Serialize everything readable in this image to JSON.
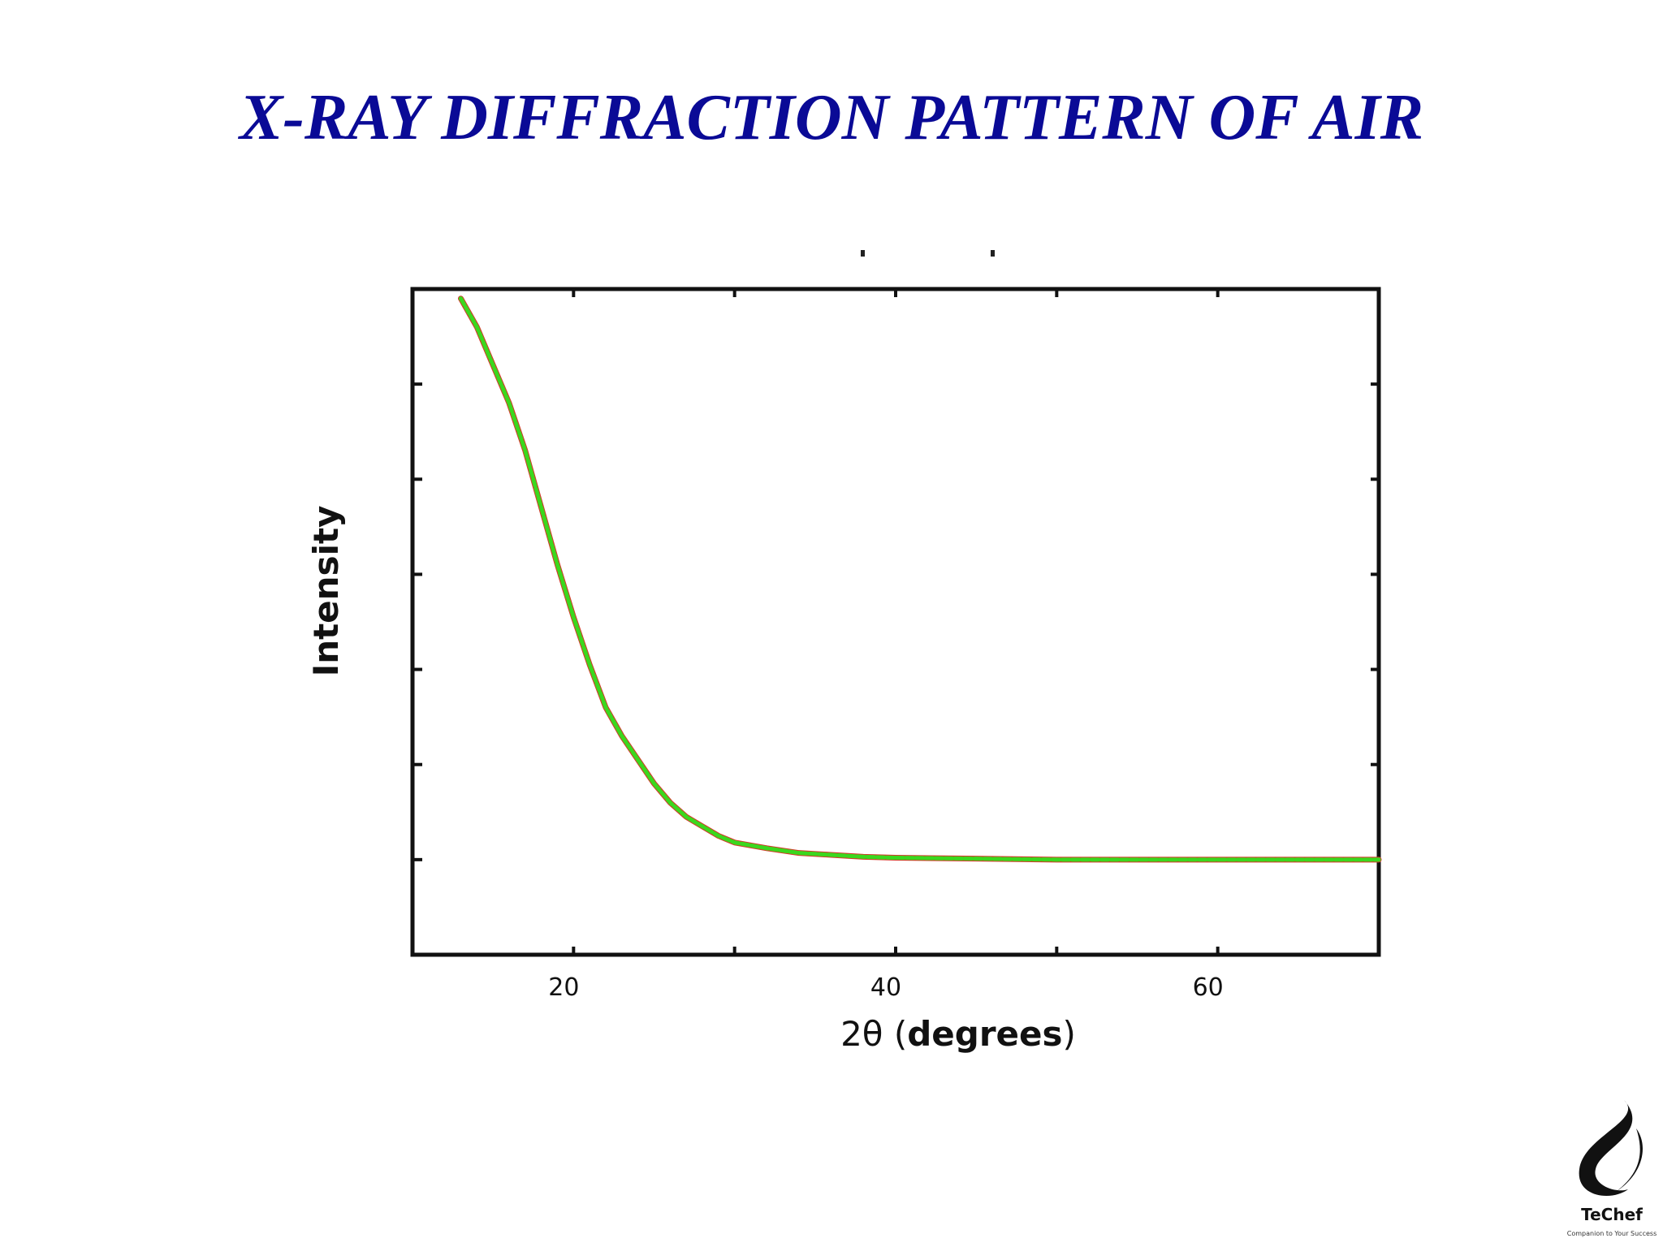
{
  "slide": {
    "title": "X-RAY DIFFRACTION PATTERN OF AIR"
  },
  "logo": {
    "name": "TeChef",
    "tagline": "Companion to Your Success"
  },
  "chart_data": {
    "type": "line",
    "title": "",
    "xlabel_prefix": "2θ (",
    "xlabel_bold": "degrees",
    "xlabel_suffix": ")",
    "ylabel": "Intensity",
    "xlim": [
      10,
      70
    ],
    "ylim": [
      0,
      7
    ],
    "xticks": [
      10,
      20,
      30,
      40,
      50,
      60,
      70
    ],
    "xtick_labels": [
      {
        "x": 20,
        "label": "20"
      },
      {
        "x": 40,
        "label": "40"
      },
      {
        "x": 60,
        "label": "60"
      }
    ],
    "yticks": [
      1,
      2,
      3,
      4,
      5,
      6
    ],
    "grid": false,
    "legend": "none",
    "series_colors": [
      "#3ad81e",
      "#d23a2a"
    ],
    "series": [
      {
        "x": [
          13,
          14,
          15,
          16,
          17,
          18,
          19,
          20,
          21,
          22,
          23,
          24,
          25,
          26,
          27,
          28,
          29,
          30,
          32,
          34,
          36,
          38,
          40,
          45,
          50,
          55,
          60,
          65,
          70
        ],
        "y": [
          6.9,
          6.6,
          6.2,
          5.8,
          5.3,
          4.7,
          4.1,
          3.55,
          3.05,
          2.6,
          2.3,
          2.05,
          1.8,
          1.6,
          1.45,
          1.35,
          1.25,
          1.18,
          1.12,
          1.07,
          1.05,
          1.03,
          1.02,
          1.01,
          1.0,
          1.0,
          1.0,
          1.0,
          1.0
        ]
      }
    ]
  }
}
